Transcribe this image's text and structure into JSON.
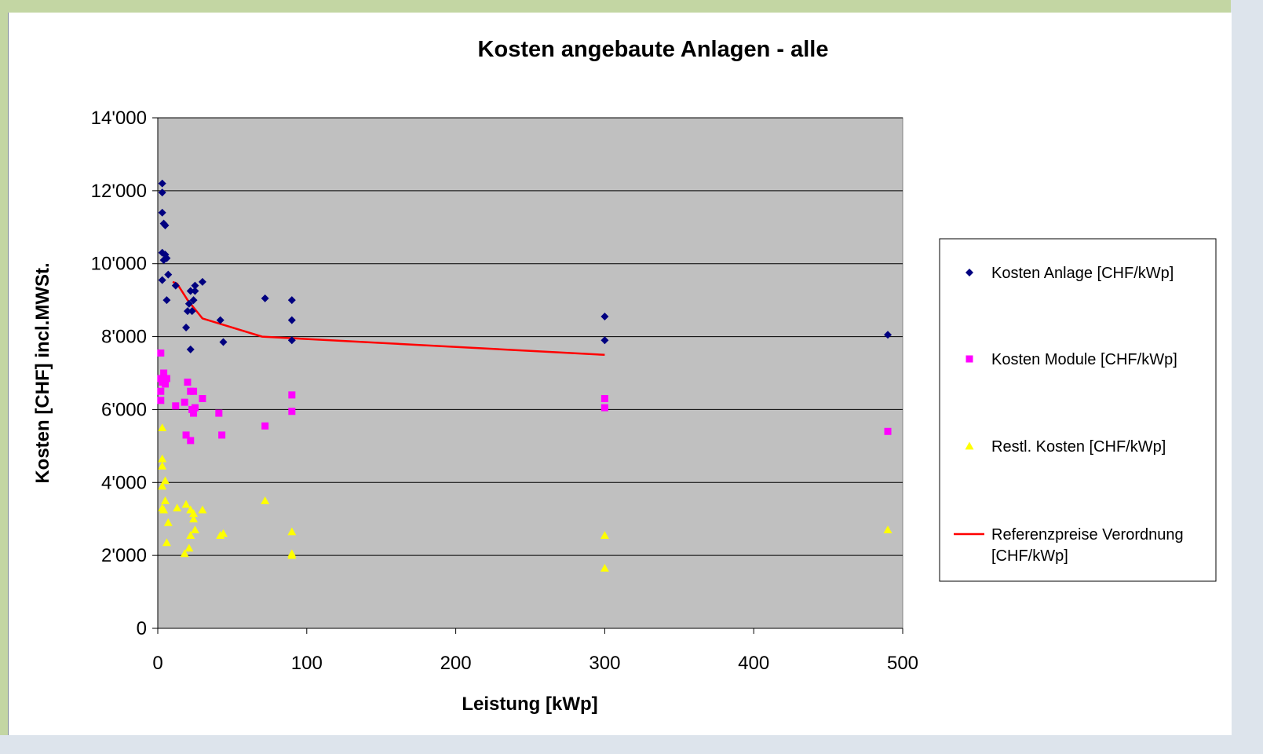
{
  "chart_data": {
    "type": "scatter",
    "title": "Kosten angebaute Anlagen - alle",
    "xlabel": "Leistung [kWp]",
    "ylabel": "Kosten [CHF] incl.MWSt.",
    "xlim": [
      0,
      500
    ],
    "ylim": [
      0,
      14000
    ],
    "xticks": [
      0,
      100,
      200,
      300,
      400,
      500
    ],
    "xtick_labels": [
      "0",
      "100",
      "200",
      "300",
      "400",
      "500"
    ],
    "yticks": [
      0,
      2000,
      4000,
      6000,
      8000,
      10000,
      12000,
      14000
    ],
    "ytick_labels": [
      "0",
      "2'000",
      "4'000",
      "6'000",
      "8'000",
      "10'000",
      "12'000",
      "14'000"
    ],
    "grid": "horizontal",
    "plot_background": "#c0c0c0",
    "legend_position": "right",
    "series": [
      {
        "name": "Kosten Anlage [CHF/kWp]",
        "marker": "diamond",
        "color": "#000080",
        "points": [
          [
            3,
            12200
          ],
          [
            3,
            11950
          ],
          [
            3,
            11400
          ],
          [
            4,
            11100
          ],
          [
            5,
            11050
          ],
          [
            3,
            10300
          ],
          [
            5,
            10250
          ],
          [
            4,
            10100
          ],
          [
            6,
            10150
          ],
          [
            3,
            9550
          ],
          [
            7,
            9700
          ],
          [
            6,
            9000
          ],
          [
            12,
            9400
          ],
          [
            20,
            8700
          ],
          [
            21,
            8900
          ],
          [
            22,
            9250
          ],
          [
            23,
            8700
          ],
          [
            24,
            9000
          ],
          [
            25,
            9250
          ],
          [
            25,
            9400
          ],
          [
            19,
            8250
          ],
          [
            22,
            7650
          ],
          [
            30,
            9500
          ],
          [
            42,
            8450
          ],
          [
            44,
            7850
          ],
          [
            72,
            9050
          ],
          [
            90,
            9000
          ],
          [
            90,
            8450
          ],
          [
            90,
            7900
          ],
          [
            300,
            8550
          ],
          [
            300,
            7900
          ],
          [
            490,
            8050
          ]
        ]
      },
      {
        "name": "Kosten Module [CHF/kWp]",
        "marker": "square",
        "color": "#ff00ff",
        "points": [
          [
            2,
            7550
          ],
          [
            2,
            6850
          ],
          [
            2,
            6500
          ],
          [
            2,
            6250
          ],
          [
            3,
            6750
          ],
          [
            4,
            7000
          ],
          [
            5,
            6850
          ],
          [
            5,
            6700
          ],
          [
            6,
            6850
          ],
          [
            12,
            6100
          ],
          [
            18,
            6200
          ],
          [
            19,
            5300
          ],
          [
            20,
            6750
          ],
          [
            22,
            6500
          ],
          [
            22,
            5150
          ],
          [
            23,
            6000
          ],
          [
            24,
            6500
          ],
          [
            24,
            5900
          ],
          [
            25,
            6050
          ],
          [
            30,
            6300
          ],
          [
            41,
            5900
          ],
          [
            43,
            5300
          ],
          [
            72,
            5550
          ],
          [
            90,
            6400
          ],
          [
            90,
            5950
          ],
          [
            300,
            6300
          ],
          [
            300,
            6050
          ],
          [
            490,
            5400
          ]
        ]
      },
      {
        "name": "Restl. Kosten [CHF/kWp]",
        "marker": "triangle",
        "color": "#ffff00",
        "points": [
          [
            3,
            5500
          ],
          [
            3,
            4650
          ],
          [
            3,
            4450
          ],
          [
            3,
            3900
          ],
          [
            3,
            3300
          ],
          [
            4,
            3250
          ],
          [
            5,
            4050
          ],
          [
            5,
            3500
          ],
          [
            6,
            2350
          ],
          [
            7,
            2900
          ],
          [
            13,
            3300
          ],
          [
            18,
            2050
          ],
          [
            19,
            3400
          ],
          [
            21,
            2200
          ],
          [
            22,
            3250
          ],
          [
            22,
            2550
          ],
          [
            24,
            3150
          ],
          [
            24,
            3000
          ],
          [
            25,
            2700
          ],
          [
            30,
            3250
          ],
          [
            42,
            2550
          ],
          [
            44,
            2600
          ],
          [
            72,
            3500
          ],
          [
            90,
            2650
          ],
          [
            90,
            2050
          ],
          [
            90,
            2000
          ],
          [
            300,
            2550
          ],
          [
            300,
            1650
          ],
          [
            490,
            2700
          ]
        ]
      },
      {
        "name": "Referenzpreise Verordnung [CHF/kWp]",
        "marker": "line",
        "color": "#ff0000",
        "points": [
          [
            10,
            9500
          ],
          [
            13,
            9450
          ],
          [
            20,
            9000
          ],
          [
            30,
            8500
          ],
          [
            70,
            8000
          ],
          [
            300,
            7500
          ]
        ]
      }
    ],
    "legend": [
      {
        "label_lines": [
          "Kosten Anlage [CHF/kWp]"
        ]
      },
      {
        "label_lines": [
          "Kosten Module [CHF/kWp]"
        ]
      },
      {
        "label_lines": [
          "Restl. Kosten [CHF/kWp]"
        ]
      },
      {
        "label_lines": [
          "Referenzpreise Verordnung",
          "[CHF/kWp]"
        ]
      }
    ]
  }
}
